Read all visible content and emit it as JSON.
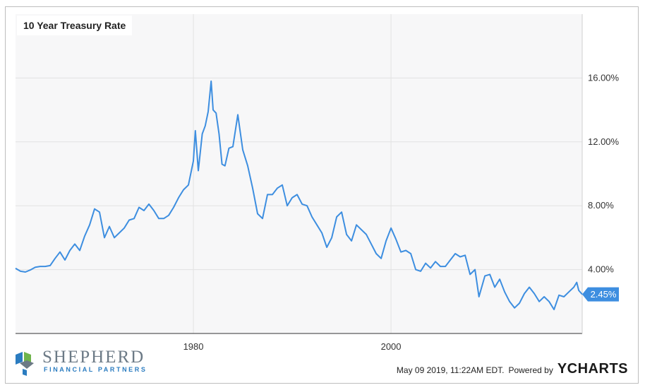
{
  "chart_data": {
    "type": "line",
    "title": "10 Year Treasury Rate",
    "series": [
      {
        "color": "#3d8ee0",
        "points": [
          [
            1962.0,
            4.08
          ],
          [
            1962.5,
            3.9
          ],
          [
            1963.0,
            3.85
          ],
          [
            1963.5,
            3.98
          ],
          [
            1964.0,
            4.15
          ],
          [
            1964.5,
            4.2
          ],
          [
            1965.0,
            4.2
          ],
          [
            1965.5,
            4.25
          ],
          [
            1966.0,
            4.7
          ],
          [
            1966.5,
            5.1
          ],
          [
            1967.0,
            4.6
          ],
          [
            1967.5,
            5.2
          ],
          [
            1968.0,
            5.6
          ],
          [
            1968.5,
            5.2
          ],
          [
            1969.0,
            6.1
          ],
          [
            1969.5,
            6.8
          ],
          [
            1970.0,
            7.8
          ],
          [
            1970.5,
            7.6
          ],
          [
            1971.0,
            6.0
          ],
          [
            1971.5,
            6.7
          ],
          [
            1972.0,
            6.0
          ],
          [
            1972.5,
            6.3
          ],
          [
            1973.0,
            6.6
          ],
          [
            1973.5,
            7.1
          ],
          [
            1974.0,
            7.2
          ],
          [
            1974.5,
            7.9
          ],
          [
            1975.0,
            7.7
          ],
          [
            1975.5,
            8.1
          ],
          [
            1976.0,
            7.7
          ],
          [
            1976.5,
            7.2
          ],
          [
            1977.0,
            7.2
          ],
          [
            1977.5,
            7.4
          ],
          [
            1978.0,
            7.9
          ],
          [
            1978.5,
            8.5
          ],
          [
            1979.0,
            9.0
          ],
          [
            1979.5,
            9.3
          ],
          [
            1980.0,
            10.8
          ],
          [
            1980.2,
            12.7
          ],
          [
            1980.5,
            10.2
          ],
          [
            1980.9,
            12.5
          ],
          [
            1981.2,
            13.0
          ],
          [
            1981.5,
            13.9
          ],
          [
            1981.8,
            15.8
          ],
          [
            1982.0,
            14.0
          ],
          [
            1982.3,
            13.8
          ],
          [
            1982.6,
            12.5
          ],
          [
            1982.9,
            10.6
          ],
          [
            1983.2,
            10.5
          ],
          [
            1983.6,
            11.6
          ],
          [
            1984.0,
            11.7
          ],
          [
            1984.5,
            13.7
          ],
          [
            1985.0,
            11.5
          ],
          [
            1985.5,
            10.5
          ],
          [
            1986.0,
            9.1
          ],
          [
            1986.5,
            7.5
          ],
          [
            1987.0,
            7.2
          ],
          [
            1987.5,
            8.7
          ],
          [
            1988.0,
            8.7
          ],
          [
            1988.5,
            9.1
          ],
          [
            1989.0,
            9.3
          ],
          [
            1989.5,
            8.0
          ],
          [
            1990.0,
            8.5
          ],
          [
            1990.5,
            8.7
          ],
          [
            1991.0,
            8.1
          ],
          [
            1991.5,
            8.0
          ],
          [
            1992.0,
            7.3
          ],
          [
            1992.5,
            6.8
          ],
          [
            1993.0,
            6.3
          ],
          [
            1993.5,
            5.4
          ],
          [
            1994.0,
            6.0
          ],
          [
            1994.5,
            7.3
          ],
          [
            1995.0,
            7.6
          ],
          [
            1995.5,
            6.2
          ],
          [
            1996.0,
            5.8
          ],
          [
            1996.5,
            6.8
          ],
          [
            1997.0,
            6.5
          ],
          [
            1997.5,
            6.2
          ],
          [
            1998.0,
            5.6
          ],
          [
            1998.5,
            5.0
          ],
          [
            1999.0,
            4.7
          ],
          [
            1999.5,
            5.8
          ],
          [
            2000.0,
            6.6
          ],
          [
            2000.5,
            5.9
          ],
          [
            2001.0,
            5.1
          ],
          [
            2001.5,
            5.2
          ],
          [
            2002.0,
            5.0
          ],
          [
            2002.5,
            4.0
          ],
          [
            2003.0,
            3.9
          ],
          [
            2003.5,
            4.4
          ],
          [
            2004.0,
            4.1
          ],
          [
            2004.5,
            4.5
          ],
          [
            2005.0,
            4.2
          ],
          [
            2005.5,
            4.2
          ],
          [
            2006.0,
            4.6
          ],
          [
            2006.5,
            5.0
          ],
          [
            2007.0,
            4.8
          ],
          [
            2007.5,
            4.9
          ],
          [
            2008.0,
            3.7
          ],
          [
            2008.5,
            4.0
          ],
          [
            2008.9,
            2.3
          ],
          [
            2009.5,
            3.6
          ],
          [
            2010.0,
            3.7
          ],
          [
            2010.5,
            2.9
          ],
          [
            2011.0,
            3.4
          ],
          [
            2011.5,
            2.6
          ],
          [
            2012.0,
            2.0
          ],
          [
            2012.5,
            1.6
          ],
          [
            2013.0,
            1.9
          ],
          [
            2013.5,
            2.5
          ],
          [
            2014.0,
            2.9
          ],
          [
            2014.5,
            2.5
          ],
          [
            2015.0,
            2.0
          ],
          [
            2015.5,
            2.3
          ],
          [
            2016.0,
            2.0
          ],
          [
            2016.5,
            1.5
          ],
          [
            2017.0,
            2.4
          ],
          [
            2017.5,
            2.3
          ],
          [
            2018.0,
            2.6
          ],
          [
            2018.5,
            2.9
          ],
          [
            2018.8,
            3.2
          ],
          [
            2019.0,
            2.7
          ],
          [
            2019.35,
            2.45
          ]
        ]
      }
    ],
    "xaxis": {
      "range": [
        1962.0,
        2019.35
      ],
      "ticks": [
        "1980",
        "2000"
      ],
      "tick_values": [
        1980,
        2000
      ]
    },
    "yaxis": {
      "range": [
        0,
        20
      ],
      "position": "right",
      "ticks": [
        "4.00%",
        "8.00%",
        "12.00%",
        "16.00%"
      ],
      "tick_values": [
        4,
        8,
        12,
        16
      ]
    },
    "grid": true,
    "current_value_label": "2.45%"
  },
  "branding": {
    "logo_name": "SHEPHERD",
    "logo_subtitle": "FINANCIAL PARTNERS",
    "logo_colors": [
      "#2b7cc0",
      "#6fb44c",
      "#6c7a86"
    ]
  },
  "footer": {
    "timestamp": "May 09 2019, 11:22AM EDT.",
    "powered_by": "Powered by",
    "brand": "YCHARTS"
  }
}
